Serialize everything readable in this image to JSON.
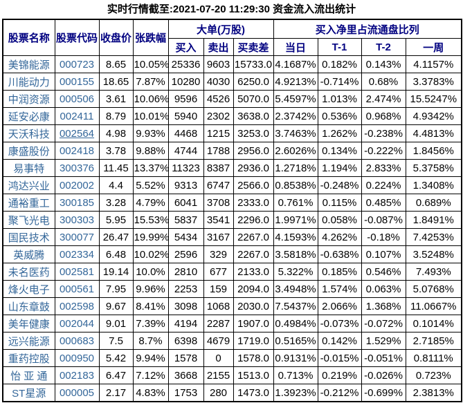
{
  "title": "实时行情截至:2021-07-20 11:29:30 资金流入流出统计",
  "colors": {
    "page_bg": "#ffffff",
    "border": "#000000",
    "header_text": "#000080",
    "link": "#336699",
    "body_text": "#000000"
  },
  "table": {
    "headers": {
      "stock_name": "股票名称",
      "stock_code": "股票代码",
      "close_price": "收盘价",
      "change_pct": "张跌幅",
      "large_orders_group": "大单(万股)",
      "buy": "买入",
      "sell": "卖出",
      "buy_sell_diff": "买卖差",
      "net_buy_ratio_group": "买入净里占流通盘比列",
      "today": "当日",
      "t1": "T-1",
      "t2": "T-2",
      "week": "一周"
    },
    "rows": [
      {
        "name": "美锦能源",
        "code": "000723",
        "code_underlined": false,
        "close": "8.65",
        "change": "10.05%",
        "buy": "25336",
        "sell": "9603",
        "diff": "15733.0",
        "today": "4.1687%",
        "t1": "0.182%",
        "t2": "0.143%",
        "week": "4.1157%"
      },
      {
        "name": "川能动力",
        "code": "000155",
        "code_underlined": false,
        "close": "18.65",
        "change": "7.87%",
        "buy": "10280",
        "sell": "4030",
        "diff": "6250.0",
        "today": "4.9213%",
        "t1": "-0.714%",
        "t2": "0.68%",
        "week": "3.3783%"
      },
      {
        "name": "中润资源",
        "code": "000506",
        "code_underlined": false,
        "close": "3.61",
        "change": "10.06%",
        "buy": "9596",
        "sell": "4526",
        "diff": "5070.0",
        "today": "5.4597%",
        "t1": "1.013%",
        "t2": "2.474%",
        "week": "15.5247%"
      },
      {
        "name": "延安必康",
        "code": "002411",
        "code_underlined": false,
        "close": "8.79",
        "change": "10.01%",
        "buy": "5940",
        "sell": "2302",
        "diff": "3638.0",
        "today": "2.3742%",
        "t1": "0.536%",
        "t2": "0.968%",
        "week": "4.9342%"
      },
      {
        "name": "天沃科技",
        "code": "002564",
        "code_underlined": true,
        "close": "4.98",
        "change": "9.93%",
        "buy": "4468",
        "sell": "1215",
        "diff": "3253.0",
        "today": "3.7463%",
        "t1": "1.262%",
        "t2": "-0.238%",
        "week": "4.4813%"
      },
      {
        "name": "康盛股份",
        "code": "002418",
        "code_underlined": false,
        "close": "3.78",
        "change": "9.88%",
        "buy": "4744",
        "sell": "1788",
        "diff": "2956.0",
        "today": "2.6026%",
        "t1": "0.134%",
        "t2": "-0.222%",
        "week": "1.8456%"
      },
      {
        "name": "易事特",
        "code": "300376",
        "code_underlined": false,
        "close": "11.45",
        "change": "13.37%",
        "buy": "11323",
        "sell": "8387",
        "diff": "2936.0",
        "today": "1.2718%",
        "t1": "1.194%",
        "t2": "2.833%",
        "week": "5.3758%"
      },
      {
        "name": "鸿达兴业",
        "code": "002002",
        "code_underlined": false,
        "close": "4.4",
        "change": "5.52%",
        "buy": "9313",
        "sell": "6747",
        "diff": "2566.0",
        "today": "0.8538%",
        "t1": "-0.248%",
        "t2": "0.224%",
        "week": "1.3408%"
      },
      {
        "name": "通裕重工",
        "code": "300185",
        "code_underlined": false,
        "close": "3.28",
        "change": "4.79%",
        "buy": "6041",
        "sell": "3708",
        "diff": "2333.0",
        "today": "0.761%",
        "t1": "0.115%",
        "t2": "0.485%",
        "week": "0.689%"
      },
      {
        "name": "聚飞光电",
        "code": "300303",
        "code_underlined": false,
        "close": "5.95",
        "change": "15.53%",
        "buy": "5837",
        "sell": "3541",
        "diff": "2296.0",
        "today": "1.9971%",
        "t1": "0.058%",
        "t2": "-0.087%",
        "week": "1.8491%"
      },
      {
        "name": "国民技术",
        "code": "300077",
        "code_underlined": false,
        "close": "26.47",
        "change": "19.99%",
        "buy": "5434",
        "sell": "3167",
        "diff": "2267.0",
        "today": "4.1593%",
        "t1": "4.262%",
        "t2": "-0.18%",
        "week": "7.4253%"
      },
      {
        "name": "英威腾",
        "code": "002334",
        "code_underlined": false,
        "close": "6.48",
        "change": "10.02%",
        "buy": "2596",
        "sell": "329",
        "diff": "2267.0",
        "today": "3.5818%",
        "t1": "-0.638%",
        "t2": "0.107%",
        "week": "3.5248%"
      },
      {
        "name": "未名医药",
        "code": "002581",
        "code_underlined": false,
        "close": "19.14",
        "change": "10.0%",
        "buy": "2810",
        "sell": "677",
        "diff": "2133.0",
        "today": "5.322%",
        "t1": "0.185%",
        "t2": "0.546%",
        "week": "7.493%"
      },
      {
        "name": "烽火电子",
        "code": "000561",
        "code_underlined": false,
        "close": "7.95",
        "change": "9.96%",
        "buy": "2253",
        "sell": "159",
        "diff": "2094.0",
        "today": "3.4948%",
        "t1": "1.574%",
        "t2": "0.063%",
        "week": "5.0768%"
      },
      {
        "name": "山东章鼓",
        "code": "002598",
        "code_underlined": false,
        "close": "9.67",
        "change": "8.41%",
        "buy": "3098",
        "sell": "1068",
        "diff": "2030.0",
        "today": "7.5437%",
        "t1": "2.066%",
        "t2": "1.368%",
        "week": "11.0667%"
      },
      {
        "name": "美年健康",
        "code": "002044",
        "code_underlined": false,
        "close": "9.01",
        "change": "7.39%",
        "buy": "4194",
        "sell": "2287",
        "diff": "1907.0",
        "today": "0.4984%",
        "t1": "-0.073%",
        "t2": "-0.072%",
        "week": "0.1014%"
      },
      {
        "name": "远兴能源",
        "code": "000683",
        "code_underlined": false,
        "close": "7.5",
        "change": "8.7%",
        "buy": "6398",
        "sell": "4679",
        "diff": "1719.0",
        "today": "0.5165%",
        "t1": "0.142%",
        "t2": "1.529%",
        "week": "2.7185%"
      },
      {
        "name": "重药控股",
        "code": "000950",
        "code_underlined": false,
        "close": "5.42",
        "change": "9.94%",
        "buy": "1578",
        "sell": "0",
        "diff": "1578.0",
        "today": "0.9131%",
        "t1": "-0.015%",
        "t2": "-0.051%",
        "week": "0.8111%"
      },
      {
        "name": "怡 亚 通",
        "code": "002183",
        "code_underlined": false,
        "close": "6.47",
        "change": "7.12%",
        "buy": "3668",
        "sell": "2155",
        "diff": "1513.0",
        "today": "0.713%",
        "t1": "0.219%",
        "t2": "-0.026%",
        "week": "0.723%"
      },
      {
        "name": "ST星源",
        "code": "000005",
        "code_underlined": false,
        "close": "2.17",
        "change": "4.83%",
        "buy": "1753",
        "sell": "280",
        "diff": "1473.0",
        "today": "1.3923%",
        "t1": "-0.212%",
        "t2": "-0.699%",
        "week": "2.3813%"
      }
    ]
  }
}
